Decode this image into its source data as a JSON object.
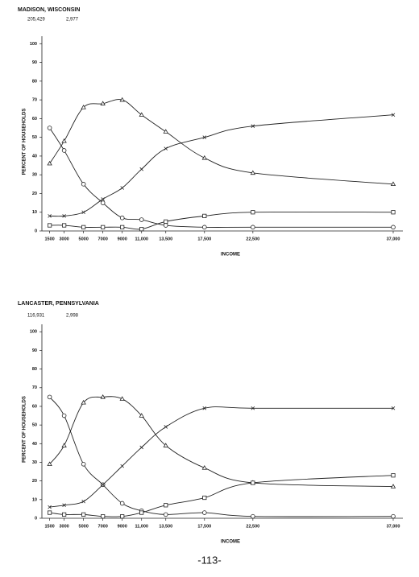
{
  "chart_data": [
    {
      "type": "line",
      "title": "MADISON, WISCONSIN",
      "annotations": [
        "205,429",
        "2,977"
      ],
      "x_label": "INCOME",
      "y_label": "PERCENT OF HOUSEHOLDS",
      "x": [
        1500,
        3000,
        5000,
        7000,
        9000,
        11000,
        13500,
        17500,
        22500,
        37000
      ],
      "xlim": [
        700,
        38000
      ],
      "xticks": [
        1500,
        3000,
        5000,
        7000,
        9000,
        {
          "value": 11000,
          "label": "11,000"
        },
        {
          "value": 13500,
          "label": "13,500"
        },
        {
          "value": 17500,
          "label": "17,500"
        },
        {
          "value": 22500,
          "label": "22,500"
        },
        {
          "value": 37000,
          "label": "37,000"
        }
      ],
      "ylim": [
        0,
        104
      ],
      "yticks": [
        0,
        10,
        20,
        30,
        40,
        50,
        60,
        70,
        80,
        90,
        100
      ],
      "grid": false,
      "series": [
        {
          "marker": "circle",
          "color": "#222",
          "values": [
            55,
            43,
            25,
            15,
            7,
            6,
            3,
            2,
            2,
            2
          ]
        },
        {
          "marker": "triangle",
          "color": "#222",
          "values": [
            36,
            48,
            66,
            68,
            70,
            62,
            53,
            39,
            31,
            25
          ]
        },
        {
          "marker": "x",
          "color": "#222",
          "values": [
            8,
            8,
            10,
            17,
            23,
            33,
            44,
            50,
            56,
            62
          ]
        },
        {
          "marker": "square",
          "color": "#222",
          "values": [
            3,
            3,
            2,
            2,
            2,
            1,
            5,
            8,
            10,
            10
          ]
        }
      ]
    },
    {
      "type": "line",
      "title": "LANCASTER, PENNSYLVANIA",
      "annotations": [
        "116,931",
        "2,998"
      ],
      "x_label": "INCOME",
      "y_label": "PERCENT OF HOUSEHOLDS",
      "x": [
        1500,
        3000,
        5000,
        7000,
        9000,
        11000,
        13500,
        17500,
        22500,
        37000
      ],
      "xlim": [
        700,
        38000
      ],
      "xticks": [
        1500,
        3000,
        5000,
        7000,
        9000,
        {
          "value": 11000,
          "label": "11,000"
        },
        {
          "value": 13500,
          "label": "13,500"
        },
        {
          "value": 17500,
          "label": "17,500"
        },
        {
          "value": 22500,
          "label": "22,500"
        },
        {
          "value": 37000,
          "label": "37,000"
        }
      ],
      "ylim": [
        0,
        104
      ],
      "yticks": [
        0,
        10,
        20,
        30,
        40,
        50,
        60,
        70,
        80,
        90,
        100
      ],
      "grid": false,
      "series": [
        {
          "marker": "circle",
          "color": "#222",
          "values": [
            65,
            55,
            29,
            18,
            8,
            4,
            2,
            3,
            1,
            1
          ]
        },
        {
          "marker": "triangle",
          "color": "#222",
          "values": [
            29,
            39,
            62,
            65,
            64,
            55,
            39,
            27,
            19,
            17
          ]
        },
        {
          "marker": "x",
          "color": "#222",
          "values": [
            6,
            7,
            9,
            18,
            28,
            38,
            49,
            59,
            59,
            59
          ]
        },
        {
          "marker": "square",
          "color": "#222",
          "values": [
            3,
            2,
            2,
            1,
            1,
            3,
            7,
            11,
            19,
            23
          ]
        }
      ]
    }
  ],
  "footer": "-113-"
}
